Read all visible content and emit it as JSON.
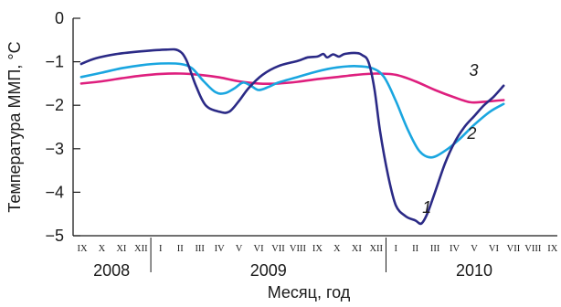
{
  "chart_data": {
    "type": "line",
    "ylabel": "Температура ММП, °C",
    "xlabel": "Месяц, год",
    "ylim": [
      -5,
      0
    ],
    "yticks": [
      0,
      -1,
      -2,
      -3,
      -4,
      -5
    ],
    "grid": false,
    "month_ticks": [
      "IX",
      "X",
      "XI",
      "XII",
      "I",
      "II",
      "III",
      "IV",
      "V",
      "VI",
      "VII",
      "VIII",
      "IX",
      "X",
      "XI",
      "XII",
      "I",
      "II",
      "III",
      "IV",
      "V",
      "VI",
      "VII",
      "VIII",
      "IX"
    ],
    "years": [
      {
        "label": "2008",
        "from": 0,
        "to": 3
      },
      {
        "label": "2009",
        "from": 4,
        "to": 15
      },
      {
        "label": "2010",
        "from": 16,
        "to": 24
      }
    ],
    "series": [
      {
        "name": "1",
        "color": "#2b2a86",
        "points": [
          [
            -0.05,
            -1.05
          ],
          [
            0.7,
            -0.92
          ],
          [
            1.8,
            -0.82
          ],
          [
            3,
            -0.76
          ],
          [
            4.3,
            -0.72
          ],
          [
            4.9,
            -0.74
          ],
          [
            5.3,
            -0.95
          ],
          [
            5.8,
            -1.55
          ],
          [
            6.3,
            -2.0
          ],
          [
            7.0,
            -2.15
          ],
          [
            7.5,
            -2.15
          ],
          [
            8.0,
            -1.9
          ],
          [
            8.5,
            -1.6
          ],
          [
            9.2,
            -1.3
          ],
          [
            10.0,
            -1.1
          ],
          [
            11.0,
            -0.98
          ],
          [
            11.5,
            -0.9
          ],
          [
            12.0,
            -0.88
          ],
          [
            12.3,
            -0.82
          ],
          [
            12.5,
            -0.9
          ],
          [
            12.8,
            -0.83
          ],
          [
            13.1,
            -0.88
          ],
          [
            13.4,
            -0.82
          ],
          [
            14.0,
            -0.8
          ],
          [
            14.3,
            -0.85
          ],
          [
            14.6,
            -1.0
          ],
          [
            14.9,
            -1.6
          ],
          [
            15.2,
            -2.6
          ],
          [
            15.6,
            -3.6
          ],
          [
            16.0,
            -4.3
          ],
          [
            16.5,
            -4.55
          ],
          [
            17.0,
            -4.65
          ],
          [
            17.3,
            -4.72
          ],
          [
            17.6,
            -4.5
          ],
          [
            18.0,
            -4.0
          ],
          [
            18.5,
            -3.35
          ],
          [
            19.0,
            -2.85
          ],
          [
            19.5,
            -2.5
          ],
          [
            20.0,
            -2.25
          ],
          [
            20.5,
            -2.0
          ],
          [
            21.0,
            -1.8
          ],
          [
            21.5,
            -1.55
          ]
        ]
      },
      {
        "name": "2",
        "color": "#1aa6e0",
        "points": [
          [
            -0.05,
            -1.35
          ],
          [
            1,
            -1.25
          ],
          [
            2,
            -1.15
          ],
          [
            3,
            -1.08
          ],
          [
            4,
            -1.04
          ],
          [
            5,
            -1.05
          ],
          [
            5.6,
            -1.15
          ],
          [
            6.2,
            -1.45
          ],
          [
            6.8,
            -1.7
          ],
          [
            7.3,
            -1.72
          ],
          [
            7.8,
            -1.6
          ],
          [
            8.2,
            -1.48
          ],
          [
            8.6,
            -1.55
          ],
          [
            9.0,
            -1.65
          ],
          [
            9.5,
            -1.58
          ],
          [
            10.0,
            -1.48
          ],
          [
            11,
            -1.35
          ],
          [
            12,
            -1.22
          ],
          [
            13,
            -1.13
          ],
          [
            14,
            -1.1
          ],
          [
            14.8,
            -1.15
          ],
          [
            15.4,
            -1.35
          ],
          [
            16.0,
            -1.9
          ],
          [
            16.6,
            -2.55
          ],
          [
            17.2,
            -3.05
          ],
          [
            17.8,
            -3.2
          ],
          [
            18.5,
            -3.05
          ],
          [
            19.2,
            -2.8
          ],
          [
            20.0,
            -2.45
          ],
          [
            20.8,
            -2.15
          ],
          [
            21.5,
            -1.97
          ]
        ]
      },
      {
        "name": "3",
        "color": "#de1f7e",
        "points": [
          [
            -0.05,
            -1.5
          ],
          [
            1,
            -1.45
          ],
          [
            2,
            -1.38
          ],
          [
            3,
            -1.32
          ],
          [
            4,
            -1.28
          ],
          [
            5,
            -1.27
          ],
          [
            6,
            -1.3
          ],
          [
            7,
            -1.36
          ],
          [
            8,
            -1.45
          ],
          [
            9,
            -1.5
          ],
          [
            10,
            -1.5
          ],
          [
            11,
            -1.46
          ],
          [
            12,
            -1.4
          ],
          [
            13,
            -1.35
          ],
          [
            14,
            -1.3
          ],
          [
            15,
            -1.27
          ],
          [
            16,
            -1.3
          ],
          [
            17,
            -1.45
          ],
          [
            18,
            -1.65
          ],
          [
            19,
            -1.82
          ],
          [
            19.8,
            -1.93
          ],
          [
            20.5,
            -1.92
          ],
          [
            21.5,
            -1.88
          ]
        ]
      }
    ]
  }
}
